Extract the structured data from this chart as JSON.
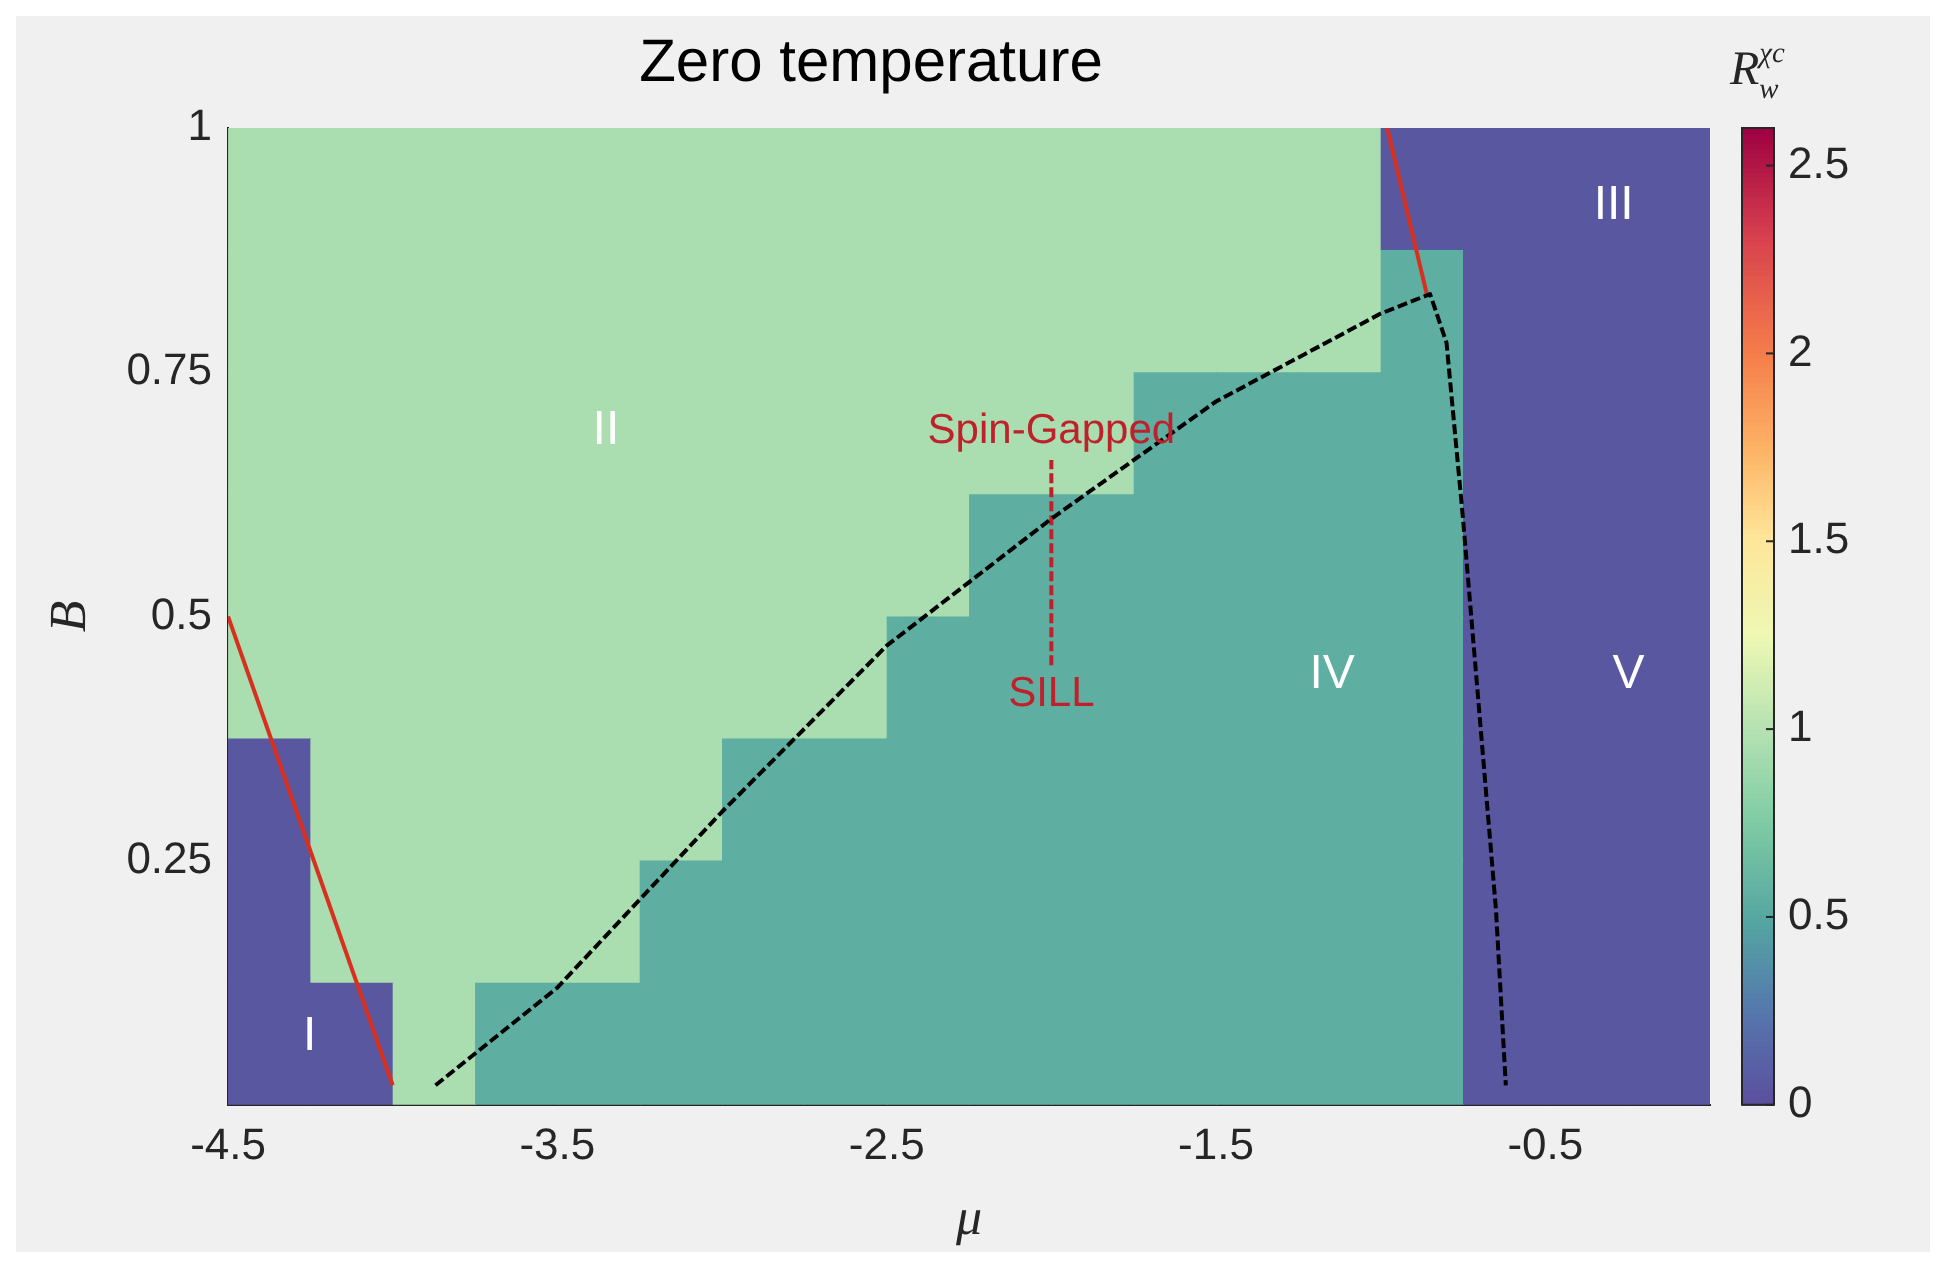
{
  "chart_data": {
    "type": "heatmap",
    "title": "Zero temperature",
    "xlabel": "μ",
    "ylabel": "B",
    "clabel": "R$_{w}$$^{χc}$",
    "x": [
      -4.375,
      -4.125,
      -3.875,
      -3.625,
      -3.375,
      -3.125,
      -2.875,
      -2.625,
      -2.375,
      -2.125,
      -1.875,
      -1.625,
      -1.375,
      -1.125,
      -0.875,
      -0.625,
      -0.375,
      -0.125
    ],
    "y": [
      0.9375,
      0.8125,
      0.6875,
      0.5625,
      0.4375,
      0.3125,
      0.1875,
      0.0625
    ],
    "cells": [
      [
        0.95,
        0.95,
        0.95,
        0.95,
        0.95,
        0.95,
        0.95,
        0.95,
        0.95,
        0.95,
        0.95,
        0.95,
        0.95,
        0.95,
        0.05,
        0.05,
        0.05,
        0.05
      ],
      [
        0.95,
        0.95,
        0.95,
        0.95,
        0.95,
        0.95,
        0.95,
        0.95,
        0.95,
        0.95,
        0.95,
        0.95,
        0.95,
        0.95,
        0.55,
        0.05,
        0.05,
        0.05
      ],
      [
        0.95,
        0.95,
        0.95,
        0.95,
        0.95,
        0.95,
        0.95,
        0.95,
        0.95,
        0.95,
        0.95,
        0.55,
        0.55,
        0.55,
        0.55,
        0.05,
        0.05,
        0.05
      ],
      [
        0.95,
        0.95,
        0.95,
        0.95,
        0.95,
        0.95,
        0.95,
        0.95,
        0.95,
        0.55,
        0.55,
        0.55,
        0.55,
        0.55,
        0.55,
        0.05,
        0.05,
        0.05
      ],
      [
        0.95,
        0.95,
        0.95,
        0.95,
        0.95,
        0.95,
        0.95,
        0.95,
        0.55,
        0.55,
        0.55,
        0.55,
        0.55,
        0.55,
        0.55,
        0.05,
        0.05,
        0.05
      ],
      [
        0.05,
        0.95,
        0.95,
        0.95,
        0.95,
        0.95,
        0.55,
        0.55,
        0.55,
        0.55,
        0.55,
        0.55,
        0.55,
        0.55,
        0.55,
        0.05,
        0.05,
        0.05
      ],
      [
        0.05,
        0.95,
        0.95,
        0.95,
        0.95,
        0.55,
        0.55,
        0.55,
        0.55,
        0.55,
        0.55,
        0.55,
        0.55,
        0.55,
        0.55,
        0.05,
        0.05,
        0.05
      ],
      [
        0.05,
        0.05,
        0.95,
        0.55,
        0.55,
        0.55,
        0.55,
        0.55,
        0.55,
        0.55,
        0.55,
        0.55,
        0.55,
        0.55,
        0.55,
        0.05,
        0.05,
        0.05
      ]
    ],
    "series": [
      {
        "type": "line",
        "color": "#000000",
        "line_style": "dashed",
        "x": [
          -3.87,
          -3.5,
          -3.0,
          -2.5,
          -2.0,
          -1.5,
          -1.0,
          -0.85,
          -0.8,
          -0.75,
          -0.7,
          -0.65,
          -0.62
        ],
        "values": [
          0.02,
          0.12,
          0.3,
          0.47,
          0.6,
          0.72,
          0.81,
          0.83,
          0.78,
          0.6,
          0.4,
          0.2,
          0.02
        ]
      },
      {
        "type": "line",
        "color": "#d7301f",
        "line_style": "solid",
        "x": [
          -4.5,
          -4.0
        ],
        "values": [
          0.5,
          0.02
        ]
      },
      {
        "type": "line",
        "color": "#d7301f",
        "line_style": "solid",
        "x": [
          -0.98,
          -0.86
        ],
        "values": [
          1,
          0.83
        ]
      },
      {
        "type": "line",
        "color": "#c0202a",
        "line_style": "dashed",
        "x": [
          -2,
          -2
        ],
        "values": [
          0.45,
          0.66
        ]
      }
    ],
    "annotations": [
      "I",
      "II",
      "III",
      "IV",
      "V",
      {
        "text": "Spin-Gapped",
        "x": -2,
        "y": 0.66
      },
      {
        "text": "SILL",
        "x": -2,
        "y": 0.45
      }
    ],
    "xlim": [
      -4.5,
      0
    ],
    "ylim": [
      0,
      1
    ],
    "xticks": [
      -4.5,
      -3.5,
      -2.5,
      -1.5,
      -0.5
    ],
    "yticks": [
      0.25,
      0.5,
      0.75,
      1
    ],
    "clim": [
      0,
      2.6
    ],
    "cticks": [
      0,
      0.5,
      1,
      1.5,
      2,
      2.5
    ]
  }
}
